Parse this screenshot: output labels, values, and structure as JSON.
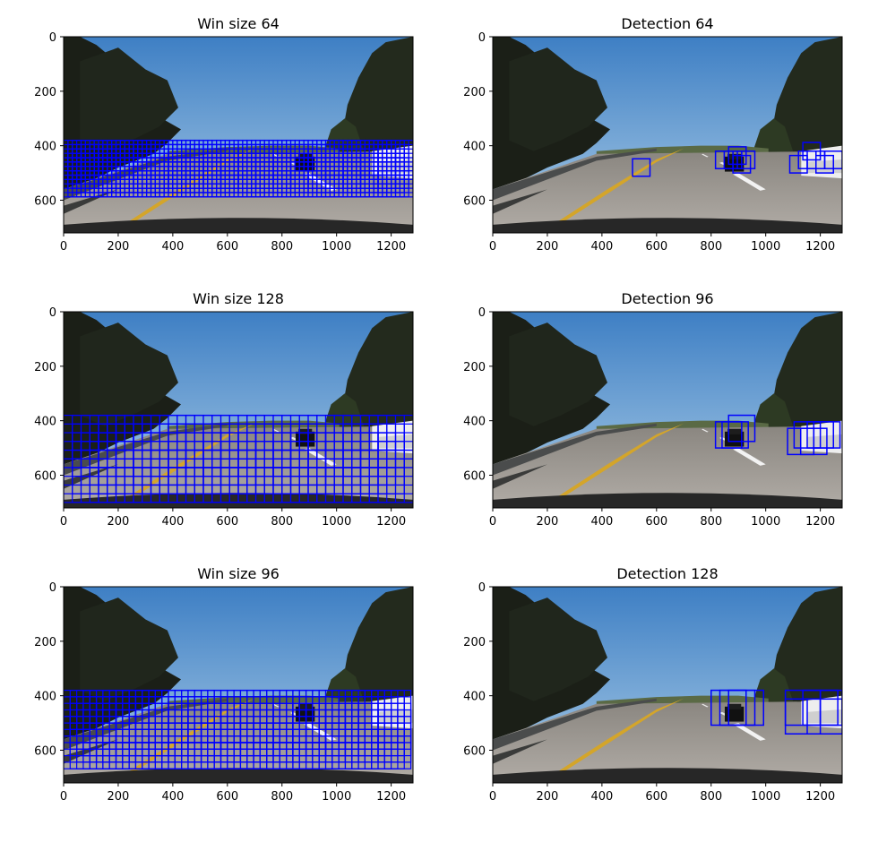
{
  "chart_data": [
    {
      "type": "image",
      "title": "Win size 64",
      "xlim": [
        0,
        1280
      ],
      "ylim": [
        720,
        0
      ],
      "xticks": [
        0,
        200,
        400,
        600,
        800,
        1000,
        1200
      ],
      "yticks": [
        0,
        200,
        400,
        600
      ],
      "box_color": "#0000ff",
      "search_windows": {
        "win": 64,
        "overlap": 0.75,
        "y_range": [
          380,
          600
        ]
      },
      "boxes": []
    },
    {
      "type": "image",
      "title": "Detection 64",
      "xlim": [
        0,
        1280
      ],
      "ylim": [
        720,
        0
      ],
      "xticks": [
        0,
        200,
        400,
        600,
        800,
        1000,
        1200
      ],
      "yticks": [
        0,
        200,
        400,
        600
      ],
      "box_color": "#0000ff",
      "boxes": [
        [
          512,
          448,
          576,
          512
        ],
        [
          816,
          420,
          880,
          484
        ],
        [
          848,
          420,
          912,
          484
        ],
        [
          864,
          404,
          928,
          468
        ],
        [
          880,
          436,
          944,
          500
        ],
        [
          896,
          420,
          960,
          484
        ],
        [
          1088,
          436,
          1152,
          500
        ],
        [
          1120,
          420,
          1184,
          484
        ],
        [
          1136,
          388,
          1200,
          452
        ],
        [
          1152,
          420,
          1216,
          484
        ],
        [
          1184,
          436,
          1248,
          500
        ],
        [
          1216,
          420,
          1280,
          484
        ]
      ]
    },
    {
      "type": "image",
      "title": "Win size 128",
      "xlim": [
        0,
        1280
      ],
      "ylim": [
        720,
        0
      ],
      "xticks": [
        0,
        200,
        400,
        600,
        800,
        1000,
        1200
      ],
      "yticks": [
        0,
        200,
        400,
        600
      ],
      "box_color": "#0000ff",
      "search_windows": {
        "win": 128,
        "overlap": 0.75,
        "y_range": [
          380,
          720
        ]
      },
      "boxes": []
    },
    {
      "type": "image",
      "title": "Detection 96",
      "xlim": [
        0,
        1280
      ],
      "ylim": [
        720,
        0
      ],
      "xticks": [
        0,
        200,
        400,
        600,
        800,
        1000,
        1200
      ],
      "yticks": [
        0,
        200,
        400,
        600
      ],
      "box_color": "#0000ff",
      "boxes": [
        [
          816,
          404,
          912,
          500
        ],
        [
          840,
          404,
          936,
          500
        ],
        [
          864,
          380,
          960,
          476
        ],
        [
          1080,
          428,
          1176,
          524
        ],
        [
          1104,
          404,
          1200,
          500
        ],
        [
          1128,
          428,
          1224,
          524
        ],
        [
          1152,
          404,
          1248,
          500
        ],
        [
          1176,
          404,
          1272,
          500
        ]
      ]
    },
    {
      "type": "image",
      "title": "Win size 96",
      "xlim": [
        0,
        1280
      ],
      "ylim": [
        720,
        0
      ],
      "xticks": [
        0,
        200,
        400,
        600,
        800,
        1000,
        1200
      ],
      "yticks": [
        0,
        200,
        400,
        600
      ],
      "box_color": "#0000ff",
      "search_windows": {
        "win": 96,
        "overlap": 0.75,
        "y_range": [
          380,
          680
        ]
      },
      "boxes": []
    },
    {
      "type": "image",
      "title": "Detection 128",
      "xlim": [
        0,
        1280
      ],
      "ylim": [
        720,
        0
      ],
      "xticks": [
        0,
        200,
        400,
        600,
        800,
        1000,
        1200
      ],
      "yticks": [
        0,
        200,
        400,
        600
      ],
      "box_color": "#0000ff",
      "boxes": [
        [
          800,
          380,
          928,
          508
        ],
        [
          832,
          380,
          960,
          508
        ],
        [
          864,
          380,
          992,
          508
        ],
        [
          1072,
          380,
          1200,
          508
        ],
        [
          1072,
          412,
          1200,
          540
        ],
        [
          1136,
          380,
          1264,
          508
        ],
        [
          1152,
          412,
          1280,
          540
        ],
        [
          1200,
          380,
          1280,
          508
        ]
      ]
    }
  ]
}
